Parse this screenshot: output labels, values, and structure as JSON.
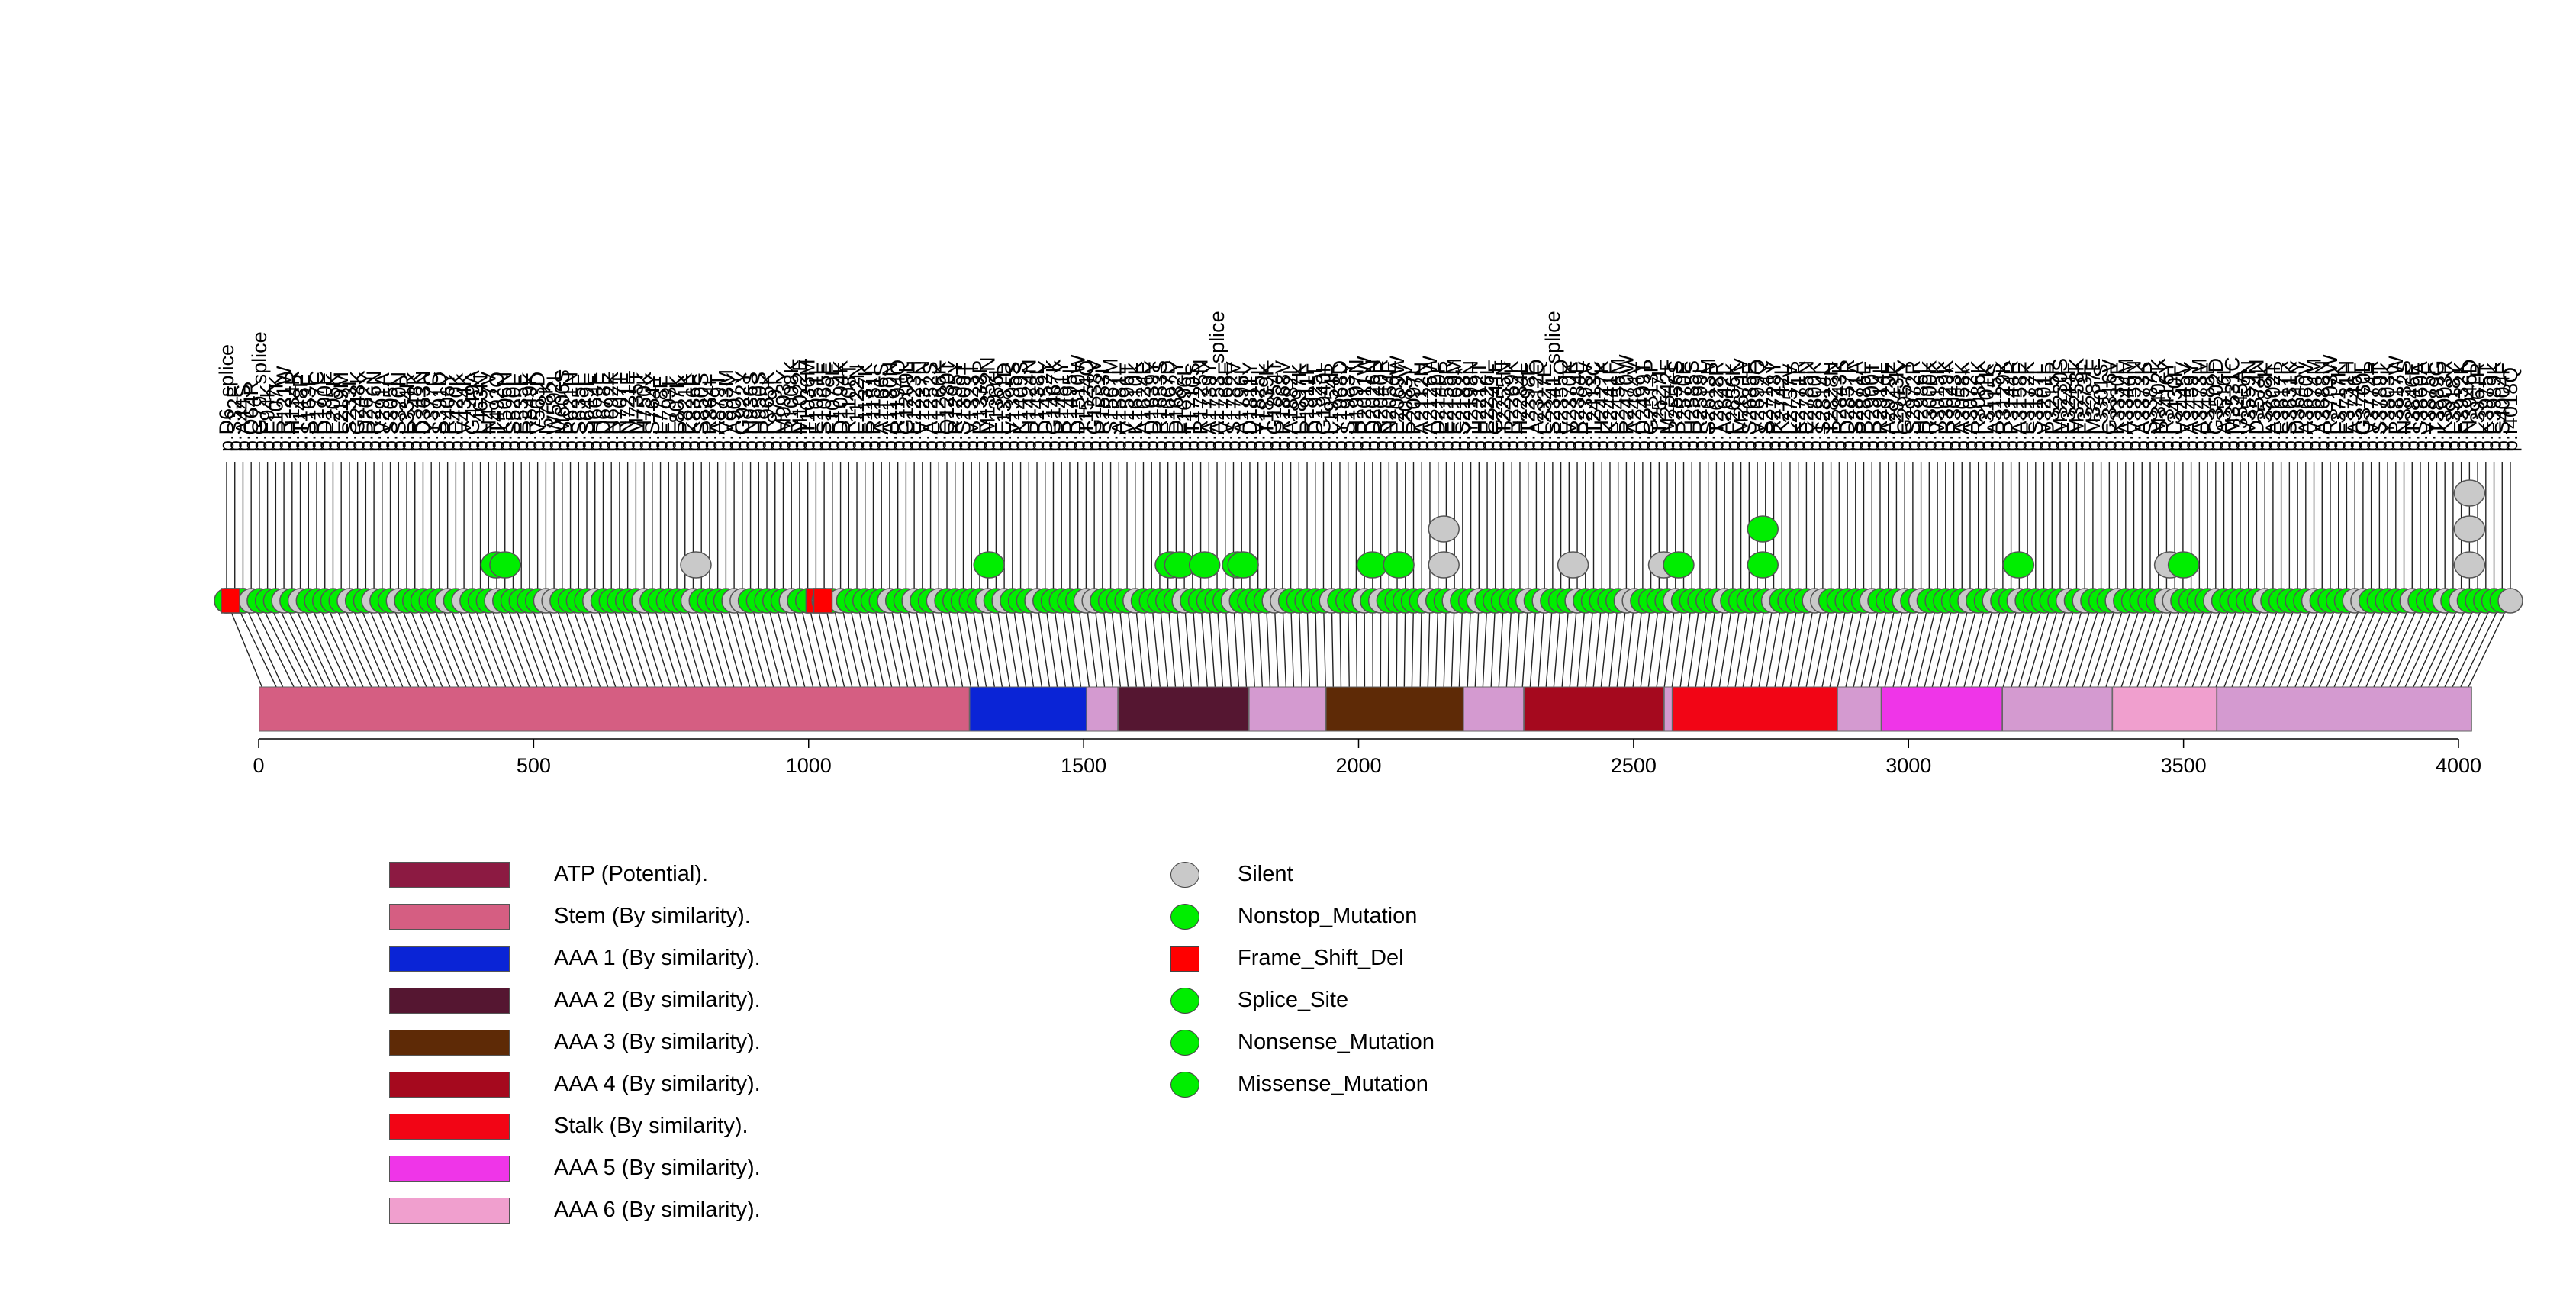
{
  "chart_data": {
    "type": "lollipop",
    "title": "",
    "xlabel": "",
    "ylabel": "",
    "protein_length": 4024,
    "xlim": [
      0,
      4024
    ],
    "ticks": [
      "0",
      "500",
      "1000",
      "1500",
      "2000",
      "2500",
      "3000",
      "3500",
      "4000"
    ],
    "tick_values": [
      0,
      500,
      1000,
      1500,
      2000,
      2500,
      3000,
      3500,
      4000
    ],
    "domains": [
      {
        "name": "Stem (By similarity).",
        "start": 1,
        "end": 1292,
        "color": "#d55e82"
      },
      {
        "name": "AAA 1 (By similarity).",
        "start": 1293,
        "end": 1505,
        "color": "#0a24d6"
      },
      {
        "name": "AAA 6 (By similarity).",
        "start": 1506,
        "end": 1562,
        "color": "#d49ad0"
      },
      {
        "name": "AAA 2 (By similarity).",
        "start": 1563,
        "end": 1800,
        "color": "#551631"
      },
      {
        "name": "AAA 6 (By similarity).",
        "start": 1801,
        "end": 1940,
        "color": "#d49ad0"
      },
      {
        "name": "AAA 3 (By similarity).",
        "start": 1941,
        "end": 2190,
        "color": "#5e2a06"
      },
      {
        "name": "AAA 6 (By similarity).",
        "start": 2191,
        "end": 2300,
        "color": "#d49ad0"
      },
      {
        "name": "AAA 4 (By similarity).",
        "start": 2301,
        "end": 2555,
        "color": "#a5091e"
      },
      {
        "name": "AAA 6 (By similarity).",
        "start": 2556,
        "end": 2570,
        "color": "#d49ad0"
      },
      {
        "name": "Stalk (By similarity).",
        "start": 2571,
        "end": 2870,
        "color": "#f20515"
      },
      {
        "name": "AAA 6 (By similarity).",
        "start": 2871,
        "end": 2950,
        "color": "#d49ad0"
      },
      {
        "name": "AAA 5 (By similarity).",
        "start": 2951,
        "end": 3170,
        "color": "#ef35e8"
      },
      {
        "name": "AAA 6 (By similarity).",
        "start": 3171,
        "end": 3370,
        "color": "#d49ad0"
      },
      {
        "name": "AAA 6 (By similarity).",
        "start": 3371,
        "end": 3560,
        "color": "#f09fce"
      },
      {
        "name": "AAA 6 (By similarity).",
        "start": 3561,
        "end": 4024,
        "color": "#d49ad0"
      }
    ],
    "stacks": [
      {
        "pos": 432,
        "count": 2,
        "type": "missense"
      },
      {
        "pos": 448,
        "count": 2,
        "type": "missense"
      },
      {
        "pos": 795,
        "count": 2,
        "type": "silent"
      },
      {
        "pos": 1328,
        "count": 2,
        "type": "missense"
      },
      {
        "pos": 1658,
        "count": 2,
        "type": "missense"
      },
      {
        "pos": 1675,
        "count": 2,
        "type": "missense"
      },
      {
        "pos": 1720,
        "count": 2,
        "type": "missense"
      },
      {
        "pos": 1780,
        "count": 2,
        "type": "missense"
      },
      {
        "pos": 1790,
        "count": 2,
        "type": "missense"
      },
      {
        "pos": 2025,
        "count": 2,
        "type": "missense"
      },
      {
        "pos": 2073,
        "count": 2,
        "type": "missense"
      },
      {
        "pos": 2155,
        "count": 3,
        "type": "silent"
      },
      {
        "pos": 2390,
        "count": 2,
        "type": "silent"
      },
      {
        "pos": 2555,
        "count": 2,
        "type": "silent"
      },
      {
        "pos": 2582,
        "count": 2,
        "type": "missense"
      },
      {
        "pos": 2735,
        "count": 3,
        "type": "missense"
      },
      {
        "pos": 3200,
        "count": 2,
        "type": "missense"
      },
      {
        "pos": 3475,
        "count": 2,
        "type": "silent"
      },
      {
        "pos": 3500,
        "count": 2,
        "type": "missense"
      },
      {
        "pos": 4020,
        "count": 4,
        "type": "silent"
      }
    ],
    "frame_shift_positions": [
      -35,
      1026
    ],
    "labels": [
      "p.D6_splice",
      "p.S32F",
      "p.A44S",
      "p.Q64R",
      "p.G79_splice",
      "p.E94K",
      "p.L107K",
      "p.R121W",
      "p.H134R",
      "p.T148P",
      "p.S163F",
      "p.R177C",
      "p.D190E",
      "p.E205K",
      "p.L219M",
      "p.S233I",
      "p.G248K",
      "p.D262Y",
      "p.R276N",
      "p.V291A",
      "p.S305I",
      "p.S320N",
      "p.L334R",
      "p.R348K",
      "p.D363N",
      "p.Y377C",
      "p.S391D",
      "p.R406Y",
      "p.E420K",
      "p.V434K",
      "p.G449A",
      "p.L463N",
      "p.N477V",
      "p.T492Q",
      "p.K506N",
      "p.S520L",
      "p.E535E",
      "p.R549K",
      "p.V563D",
      "p.I578K",
      "p.W592L",
      "p.M606S",
      "p.P621N",
      "p.S635E",
      "p.S649L",
      "p.H664F",
      "p.D678E",
      "p.N692K",
      "p.R707T",
      "p.N721E",
      "p.M735T",
      "p.H750K",
      "p.S764Y",
      "p.L778E",
      "p.E793I",
      "p.L807K",
      "p.P821K",
      "p.K836E",
      "p.S850S",
      "p.R864I",
      "p.A879T",
      "p.V893M",
      "p.A907Y",
      "p.G922Y",
      "p.N936S",
      "p.H950S",
      "p.R965K",
      "p.L979T",
      "p.M993Y",
      "p.R1008K",
      "p.M1022E",
      "p.T1036M",
      "p.E1051L",
      "p.S1065E",
      "p.F1079E",
      "p.D1094K",
      "p.R1108T",
      "p.L1122N",
      "p.E1137K",
      "p.R1151I",
      "p.A1166S",
      "p.A1180N",
      "p.R1194Q",
      "p.G1209L",
      "p.E1223H",
      "p.V1237N",
      "p.A1252S",
      "p.E1266K",
      "p.Q1280T",
      "p.R1295Y",
      "p.S1309T",
      "p.V1323T",
      "p.R1338P",
      "p.M1352N",
      "p.E1366L",
      "p.L1381D",
      "p.V1395S",
      "p.K1409S",
      "p.H1424N",
      "p.P1438L",
      "p.D1452Y",
      "p.G1467K",
      "p.R1481Y",
      "p.R1495L",
      "p.D1510W",
      "p.T1524Q",
      "p.G1538V",
      "p.R1553I",
      "p.S1567M",
      "p.A1581L",
      "p.V1596T",
      "p.K1610K",
      "p.A1624E",
      "p.D1639Y",
      "p.R1653S",
      "p.E1667D",
      "p.D1682Y",
      "p.F1696L",
      "p.T1710S",
      "p.R1725N",
      "p.A1739Y",
      "p.A1753_splice",
      "p.V1768E",
      "p.S1782V",
      "p.A1796I",
      "p.D1811Y",
      "p.V1825L",
      "p.T1839K",
      "p.G1854T",
      "p.R1868V",
      "p.A1882I",
      "p.L1897K",
      "p.R1911F",
      "p.D1925L",
      "p.G1940I",
      "p.L1954R",
      "p.Y1968D",
      "p.S1983Y",
      "p.H1997N",
      "p.R2011W",
      "p.D2026N",
      "p.R2040R",
      "p.N2054E",
      "p.E2069W",
      "p.L2083V",
      "p.P2097L",
      "p.A2112N",
      "p.A2126W",
      "p.D2140F",
      "p.E2155R",
      "p.E2169M",
      "p.S2183*",
      "p.Y2198N",
      "p.H2212T",
      "p.E2226L",
      "p.G2241E",
      "p.T2255N",
      "p.R2269K",
      "p.H2284L",
      "p.T2298E",
      "p.A2312Q",
      "p.L2327E",
      "p.S2341_splice",
      "p.E2355Q",
      "p.V2370K",
      "p.R2384E",
      "p.P2398V",
      "p.T2413C",
      "p.H2427K",
      "p.K2441F",
      "p.E2456M",
      "p.R2470W",
      "p.A2484V",
      "p.D2499T",
      "p.G2513P",
      "p.T2527L",
      "p.M2542F",
      "p.R2556S",
      "p.P2570E",
      "p.H2585S",
      "p.R2599L",
      "p.S2613M",
      "p.T2628R",
      "p.A2642L",
      "p.F2656K",
      "p.M2671V",
      "p.S2685E",
      "p.V2699Q",
      "p.S2714Y",
      "p.R2728Y",
      "p.K2742L",
      "p.L2757V",
      "p.K2771R",
      "p.E2785N",
      "p.Y2800K",
      "p.S2814L",
      "p.T2828N",
      "p.R2843K",
      "p.D2857R",
      "p.S2871A",
      "p.P2886L",
      "p.R2900T",
      "p.R2914L",
      "p.A2929E",
      "p.L2943K",
      "p.G2957Y",
      "p.S2972R",
      "p.H2986L",
      "p.R3000K",
      "p.V3015K",
      "p.R3029K",
      "p.R3043*",
      "p.A3058K",
      "p.A3072*",
      "p.R3086K",
      "p.L3101K",
      "p.A3115S",
      "p.R3129K",
      "p.P3144R",
      "p.A3158E",
      "p.E3172K",
      "p.S3187L",
      "p.V3201L",
      "p.P3215P",
      "p.M3230S",
      "p.E3244F",
      "p.M3258K",
      "p.F3273F",
      "p.M3287E",
      "p.L3301S",
      "p.G3316V",
      "p.K3330E",
      "p.A3344M",
      "p.V3359N",
      "p.A3373K",
      "p.S3387P",
      "p.M3402K",
      "p.R3416Y",
      "p.L3430F",
      "p.V3445V",
      "p.A3459Y",
      "p.A3473M",
      "p.P3488E",
      "p.G3502D",
      "p.A3516L",
      "p.M3531C",
      "p.I3545A",
      "p.V3559N",
      "p.D3574N",
      "p.L3588K",
      "p.A3602T",
      "p.E3617R",
      "p.S3631K",
      "p.D3645Y",
      "p.A3660V",
      "p.V3674M",
      "p.A3688N",
      "p.R3703W",
      "p.L3717K",
      "p.E3731H",
      "p.A3746F",
      "p.G3760L",
      "p.V3774R",
      "p.S3789T",
      "p.Y3803K",
      "p.P3817W",
      "p.N3832S",
      "p.T3846E",
      "p.S3860A",
      "p.V3875F",
      "p.T3889G",
      "p.K3903R",
      "p.L3918Y",
      "p.E3932K",
      "p.N3946D",
      "p.L3961R",
      "p.K3975T",
      "p.E3989K",
      "p.S4004F",
      "p.I4018Q"
    ]
  },
  "legend_left": [
    {
      "label": "ATP (Potential).",
      "color": "#8c1a42"
    },
    {
      "label": "Stem (By similarity).",
      "color": "#d55e82"
    },
    {
      "label": "AAA 1 (By similarity).",
      "color": "#0a24d6"
    },
    {
      "label": "AAA 2 (By similarity).",
      "color": "#551631"
    },
    {
      "label": "AAA 3 (By similarity).",
      "color": "#5e2a06"
    },
    {
      "label": "AAA 4 (By similarity).",
      "color": "#a5091e"
    },
    {
      "label": "Stalk (By similarity).",
      "color": "#f20515"
    },
    {
      "label": "AAA 5 (By similarity).",
      "color": "#ef35e8"
    },
    {
      "label": "AAA 6 (By similarity).",
      "color": "#f09fce"
    }
  ],
  "legend_right": [
    {
      "label": "Silent",
      "color": "#c9c9c9",
      "shape": "circle"
    },
    {
      "label": "Nonstop_Mutation",
      "color": "#00ee00",
      "shape": "circle"
    },
    {
      "label": "Frame_Shift_Del",
      "color": "#ff0000",
      "shape": "square"
    },
    {
      "label": "Splice_Site",
      "color": "#00ee00",
      "shape": "circle"
    },
    {
      "label": "Nonsense_Mutation",
      "color": "#00ee00",
      "shape": "circle"
    },
    {
      "label": "Missense_Mutation",
      "color": "#00ee00",
      "shape": "circle"
    }
  ],
  "colors": {
    "missense": "#00ee00",
    "silent": "#c9c9c9",
    "frameshift": "#ff0000",
    "stroke": "#555555"
  }
}
